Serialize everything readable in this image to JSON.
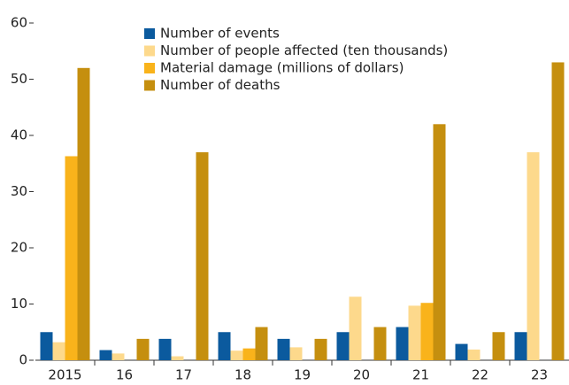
{
  "chart_data": {
    "type": "bar",
    "categories": [
      "2015",
      "16",
      "17",
      "18",
      "19",
      "20",
      "21",
      "22",
      "23"
    ],
    "series": [
      {
        "name": "Number of events",
        "color": "#0b5a9e",
        "values": [
          5,
          1.8,
          3.8,
          5,
          3.8,
          5,
          5.9,
          2.9,
          5
        ]
      },
      {
        "name": "Number of people affected (ten thousands)",
        "color": "#fdd98c",
        "values": [
          3.2,
          1.2,
          0.7,
          1.7,
          2.3,
          11.3,
          9.7,
          1.9,
          37
        ]
      },
      {
        "name": "Material damage (millions of dollars)",
        "color": "#f9b31b",
        "values": [
          36.3,
          0,
          0,
          2.1,
          0,
          0,
          10.2,
          0,
          0
        ]
      },
      {
        "name": "Number of deaths",
        "color": "#c58f0f",
        "values": [
          52,
          3.8,
          37,
          5.9,
          3.8,
          5.9,
          42,
          5,
          53
        ]
      }
    ],
    "ylim": [
      0,
      60
    ],
    "yticks": [
      0,
      10,
      20,
      30,
      40,
      50,
      60
    ],
    "legend": "upper left"
  }
}
